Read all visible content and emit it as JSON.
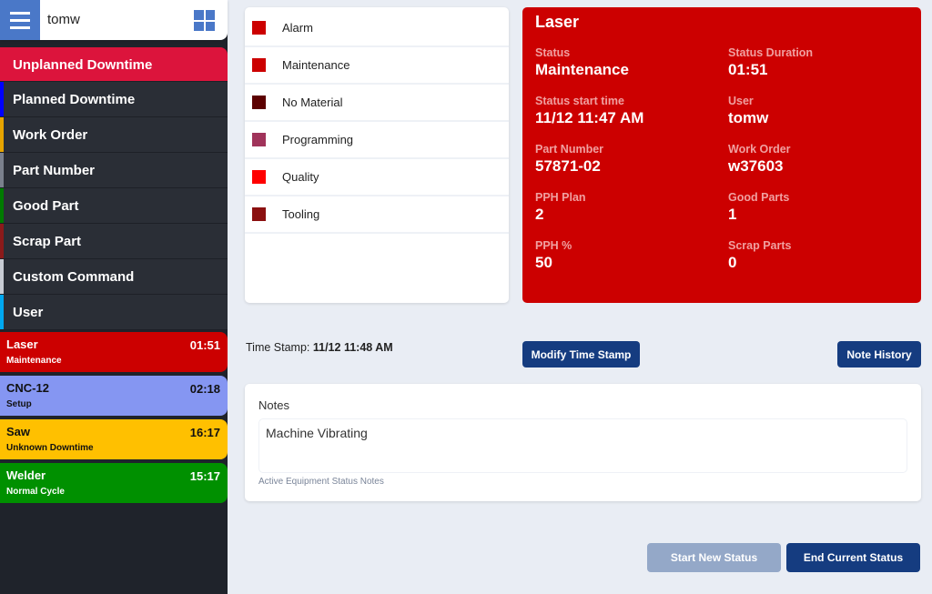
{
  "header": {
    "user": "tomw",
    "menu_icon": "hamburger-icon",
    "apps_icon": "grid-icon"
  },
  "menu": [
    {
      "label": "Unplanned Downtime",
      "color": "#dc143c"
    },
    {
      "label": "Planned Downtime",
      "color": "#0000ff"
    },
    {
      "label": "Work Order",
      "color": "#e6a400"
    },
    {
      "label": "Part Number",
      "color": "#7a808c"
    },
    {
      "label": "Good Part",
      "color": "#007a00"
    },
    {
      "label": "Scrap Part",
      "color": "#8b1a1a"
    },
    {
      "label": "Custom Command",
      "color": "#c8ccd4"
    },
    {
      "label": "User",
      "color": "#00a8f0"
    }
  ],
  "machines": [
    {
      "name": "Laser",
      "time": "01:51",
      "status": "Maintenance",
      "bg": "#cc0000",
      "fg": "#ffffff"
    },
    {
      "name": "CNC-12",
      "time": "02:18",
      "status": "Setup",
      "bg": "#8596f2",
      "fg": "#111111"
    },
    {
      "name": "Saw",
      "time": "16:17",
      "status": "Unknown Downtime",
      "bg": "#ffc000",
      "fg": "#111111"
    },
    {
      "name": "Welder",
      "time": "15:17",
      "status": "Normal Cycle",
      "bg": "#009000",
      "fg": "#ffffff"
    }
  ],
  "statuses": [
    {
      "label": "Alarm",
      "color": "#cc0000"
    },
    {
      "label": "Maintenance",
      "color": "#cc0000"
    },
    {
      "label": "No Material",
      "color": "#5c0000"
    },
    {
      "label": "Programming",
      "color": "#a0335a"
    },
    {
      "label": "Quality",
      "color": "#ff0000"
    },
    {
      "label": "Tooling",
      "color": "#8b1010"
    }
  ],
  "detail": {
    "title": "Laser",
    "color": "#cc0000",
    "fields": [
      {
        "label": "Status",
        "value": "Maintenance"
      },
      {
        "label": "Status Duration",
        "value": "01:51"
      },
      {
        "label": "Status start time",
        "value": "11/12 11:47 AM"
      },
      {
        "label": "User",
        "value": "tomw"
      },
      {
        "label": "Part Number",
        "value": "57871-02"
      },
      {
        "label": "Work Order",
        "value": "w37603"
      },
      {
        "label": "PPH Plan",
        "value": "2"
      },
      {
        "label": "Good Parts",
        "value": "1"
      },
      {
        "label": "PPH %",
        "value": "50"
      },
      {
        "label": "Scrap Parts",
        "value": "0"
      }
    ]
  },
  "timestamp": {
    "label": "Time Stamp:",
    "value": "11/12 11:48 AM"
  },
  "buttons": {
    "modify": "Modify Time Stamp",
    "history": "Note History",
    "start": "Start New Status",
    "end": "End Current Status"
  },
  "notes": {
    "label": "Notes",
    "value": "Machine Vibrating",
    "hint": "Active Equipment Status Notes"
  }
}
